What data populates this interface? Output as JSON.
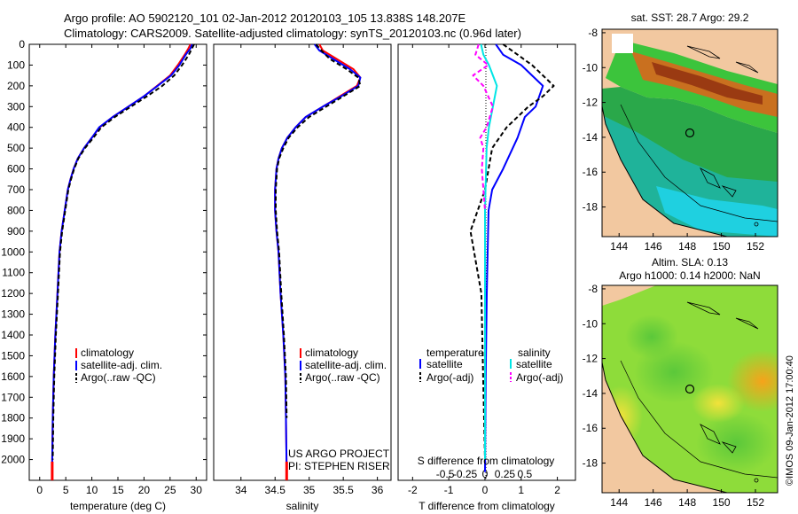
{
  "header": {
    "line1": "Argo profile: AO 5902120_101 02-Jan-2012 20120103_105 13.838S 148.207E",
    "line2": "Climatology: CARS2009. Satellite-adjusted climatology: synTS_20120103.nc (0.96d later)"
  },
  "credit": "©IMOS 09-Jan-2012 17:00:40",
  "colors": {
    "climatology": "#ff0000",
    "satellite": "#0000ff",
    "argo": "#000000",
    "sal_satellite": "#00e5e5",
    "sal_argo": "#ff00ff",
    "land": "#f2c8a0"
  },
  "chart_data": [
    {
      "type": "line",
      "name": "temperature-profile",
      "xlabel": "temperature (deg C)",
      "xlim": [
        -2,
        32
      ],
      "ylim": [
        2100,
        0
      ],
      "xticks": [
        0,
        5,
        10,
        15,
        20,
        25,
        30
      ],
      "yticks": [
        0,
        100,
        200,
        300,
        400,
        500,
        600,
        700,
        800,
        900,
        1000,
        1100,
        1200,
        1300,
        1400,
        1500,
        1600,
        1700,
        1800,
        1900,
        2000
      ],
      "legend": [
        "climatology",
        "satellite-adj. clim.",
        "Argo(..raw -QC)"
      ],
      "series": [
        {
          "name": "climatology",
          "color": "#ff0000",
          "dash": "",
          "x": [
            28.9,
            28.5,
            27.8,
            26.5,
            25.0,
            22.5,
            20.0,
            17.0,
            14.0,
            11.5,
            10.0,
            8.5,
            7.3,
            6.5,
            5.9,
            5.4,
            4.8,
            4.2,
            3.8,
            3.4,
            3.0,
            2.7,
            2.5,
            2.4,
            2.4
          ],
          "y": [
            0,
            20,
            50,
            100,
            150,
            200,
            250,
            300,
            350,
            400,
            450,
            500,
            550,
            600,
            650,
            700,
            800,
            900,
            1000,
            1200,
            1400,
            1600,
            1800,
            2000,
            2060
          ]
        },
        {
          "name": "satellite-adj. clim.",
          "color": "#0000ff",
          "dash": "",
          "x": [
            29.2,
            28.9,
            28.0,
            26.8,
            25.2,
            22.6,
            20.0,
            17.0,
            14.0,
            11.4,
            10.0,
            8.5,
            7.3,
            6.5,
            5.9,
            5.4,
            4.8,
            4.2,
            3.8,
            3.4,
            3.0,
            2.7,
            2.5,
            2.4,
            2.4
          ],
          "y": [
            0,
            20,
            50,
            100,
            150,
            200,
            250,
            300,
            350,
            400,
            450,
            500,
            550,
            600,
            650,
            700,
            800,
            900,
            1000,
            1200,
            1400,
            1600,
            1800,
            2000,
            2060
          ]
        },
        {
          "name": "Argo(..raw -QC)",
          "color": "#000000",
          "dash": "5,3",
          "x": [
            29.6,
            29.2,
            28.6,
            27.3,
            25.8,
            23.5,
            20.6,
            17.5,
            14.4,
            11.8,
            10.3,
            8.7,
            7.4,
            6.6,
            6.0,
            5.5,
            4.9,
            4.3,
            3.9,
            3.5,
            3.1,
            2.8,
            2.6,
            2.5
          ],
          "y": [
            0,
            20,
            50,
            100,
            150,
            200,
            250,
            300,
            350,
            400,
            450,
            500,
            550,
            600,
            650,
            700,
            800,
            900,
            1000,
            1200,
            1400,
            1600,
            1800,
            2000
          ]
        }
      ]
    },
    {
      "type": "line",
      "name": "salinity-profile",
      "xlabel": "salinity",
      "xlim": [
        33.6,
        36.2
      ],
      "ylim": [
        2100,
        0
      ],
      "xticks": [
        34,
        34.5,
        35,
        35.5,
        36
      ],
      "xticklabels": [
        "34",
        "34.5",
        "35",
        "35.5",
        "36"
      ],
      "legend": [
        "climatology",
        "satellite-adj. clim.",
        "Argo(..raw -QC)"
      ],
      "annotation": [
        "US ARGO PROJECT",
        "PI: STEPHEN RISER"
      ],
      "series": [
        {
          "name": "climatology",
          "color": "#ff0000",
          "dash": "",
          "x": [
            35.15,
            35.2,
            35.4,
            35.65,
            35.75,
            35.7,
            35.45,
            35.2,
            34.95,
            34.8,
            34.68,
            34.6,
            34.55,
            34.52,
            34.5,
            34.5,
            34.52,
            34.55,
            34.58,
            34.62,
            34.65,
            34.66,
            34.67
          ],
          "y": [
            0,
            30,
            70,
            120,
            160,
            200,
            250,
            300,
            350,
            400,
            450,
            500,
            550,
            600,
            700,
            800,
            900,
            1000,
            1200,
            1400,
            1600,
            1800,
            2060
          ]
        },
        {
          "name": "satellite-adj. clim.",
          "color": "#0000ff",
          "dash": "",
          "x": [
            35.08,
            35.15,
            35.35,
            35.6,
            35.75,
            35.72,
            35.47,
            35.2,
            34.95,
            34.8,
            34.68,
            34.6,
            34.55,
            34.52,
            34.5,
            34.5,
            34.52,
            34.55,
            34.58,
            34.62,
            34.65,
            34.66,
            34.67
          ],
          "y": [
            0,
            30,
            70,
            120,
            160,
            200,
            250,
            300,
            350,
            400,
            450,
            500,
            550,
            600,
            700,
            800,
            900,
            1000,
            1200,
            1400,
            1600,
            1800,
            2060
          ]
        },
        {
          "name": "Argo(..raw -QC)",
          "color": "#000000",
          "dash": "5,3",
          "x": [
            35.1,
            35.18,
            35.3,
            35.55,
            35.72,
            35.75,
            35.5,
            35.25,
            35.0,
            34.83,
            34.7,
            34.62,
            34.56,
            34.53,
            34.51,
            34.51,
            34.53,
            34.56,
            34.59,
            34.63,
            34.66,
            34.67
          ],
          "y": [
            0,
            30,
            70,
            120,
            160,
            200,
            250,
            300,
            350,
            400,
            450,
            500,
            550,
            600,
            700,
            800,
            900,
            1000,
            1200,
            1400,
            1600,
            1800
          ]
        }
      ]
    },
    {
      "type": "line",
      "name": "difference-profile",
      "xlabel": "T difference from climatology",
      "xlabel_top": "S difference from climatology",
      "xlim": [
        -2.4,
        2.5
      ],
      "ylim": [
        2100,
        0
      ],
      "xticks": [
        -2,
        -1,
        0,
        1,
        2
      ],
      "top_ticks": [
        -0.5,
        -0.25,
        0,
        0.25,
        0.5
      ],
      "top_ticklabels": [
        "-0.5",
        "-0.25",
        "0",
        "0.25",
        "0.5"
      ],
      "legend_titles": [
        "temperature",
        "salinity"
      ],
      "legend": [
        "satellite",
        "Argo(-adj)",
        "satellite",
        "Argo(-adj)"
      ],
      "series": [
        {
          "name": "T satellite",
          "color": "#0000ff",
          "dash": "",
          "x": [
            0.3,
            0.5,
            1.0,
            1.3,
            1.6,
            1.4,
            1.1,
            0.9,
            0.5,
            0.2,
            0.1,
            0.05,
            0.02,
            0.0
          ],
          "y": [
            0,
            50,
            100,
            150,
            200,
            300,
            350,
            450,
            600,
            700,
            800,
            1200,
            1600,
            2060
          ]
        },
        {
          "name": "T Argo(-adj)",
          "color": "#000000",
          "dash": "5,3",
          "x": [
            0.5,
            0.9,
            1.3,
            1.6,
            1.9,
            1.6,
            1.2,
            0.6,
            0.2,
            0.0,
            -0.2,
            -0.4,
            -0.3,
            -0.1,
            -0.05,
            0.0
          ],
          "y": [
            0,
            50,
            100,
            150,
            200,
            250,
            300,
            400,
            500,
            700,
            800,
            900,
            1000,
            1200,
            1600,
            2000
          ]
        },
        {
          "name": "S satellite",
          "color": "#00e5e5",
          "dash": "",
          "x": [
            -0.05,
            -0.02,
            0.05,
            0.1,
            0.15,
            0.1,
            0.05,
            0.02,
            0.0,
            0.0
          ],
          "y": [
            0,
            50,
            100,
            150,
            200,
            300,
            400,
            500,
            800,
            2000
          ]
        },
        {
          "name": "S Argo(-adj)",
          "color": "#ff00ff",
          "dash": "5,3",
          "x": [
            -0.08,
            -0.12,
            0.04,
            -0.15,
            -0.02,
            0.1,
            0.02,
            -0.06,
            -0.02,
            -0.04,
            0.0
          ],
          "y": [
            0,
            50,
            100,
            150,
            200,
            300,
            400,
            450,
            500,
            600,
            800
          ]
        }
      ]
    },
    {
      "type": "heatmap",
      "name": "sst-map",
      "title": "sat. SST: 28.7 Argo: 29.2",
      "xlim": [
        143,
        153.3
      ],
      "ylim": [
        -19.7,
        -7.8
      ],
      "xticks": [
        144,
        146,
        148,
        150,
        152
      ],
      "yticks": [
        -8,
        -10,
        -12,
        -14,
        -16,
        -18
      ],
      "float_position": {
        "lon": 148.207,
        "lat": -13.838
      }
    },
    {
      "type": "heatmap",
      "name": "sla-map",
      "title": [
        "Altim. SLA: 0.13",
        "Argo h1000: 0.14 h2000: NaN"
      ],
      "xlim": [
        143,
        153.3
      ],
      "ylim": [
        -19.7,
        -7.8
      ],
      "xticks": [
        144,
        146,
        148,
        150,
        152
      ],
      "yticks": [
        -8,
        -10,
        -12,
        -14,
        -16,
        -18
      ],
      "float_position": {
        "lon": 148.207,
        "lat": -13.838
      }
    }
  ]
}
